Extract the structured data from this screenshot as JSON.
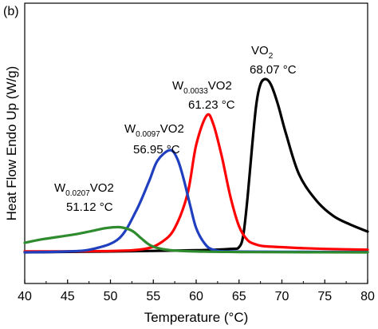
{
  "panel_label": "(b)",
  "chart_data": {
    "type": "line",
    "title": "",
    "xlabel": "Temperature (°C)",
    "ylabel": "Heat Flow Endo Up (W/g)",
    "xlim": [
      40,
      80
    ],
    "x_ticks": [
      "40",
      "45",
      "50",
      "55",
      "60",
      "65",
      "70",
      "75",
      "80"
    ],
    "y_ticks_shown": false,
    "grid": false,
    "legend": "none (series labelled by annotations)",
    "series": [
      {
        "name": "VO2",
        "color": "#000000",
        "x": [
          40,
          50,
          60,
          64,
          65,
          65.5,
          66,
          66.5,
          67,
          67.5,
          68.07,
          68.7,
          69.5,
          70.5,
          72,
          74,
          76,
          78,
          80
        ],
        "y": [
          0,
          0.005,
          0.012,
          0.02,
          0.03,
          0.1,
          0.32,
          0.6,
          0.85,
          0.97,
          1.0,
          0.97,
          0.86,
          0.68,
          0.45,
          0.3,
          0.21,
          0.16,
          0.12
        ]
      },
      {
        "name": "W0.0033VO2",
        "color": "#ff0000",
        "x": [
          40,
          50,
          54,
          56,
          57.5,
          59,
          60,
          61.23,
          62,
          63,
          64,
          65,
          66,
          67,
          68,
          70,
          72,
          75,
          80
        ],
        "y": [
          0.005,
          0.008,
          0.02,
          0.06,
          0.14,
          0.34,
          0.62,
          0.79,
          0.74,
          0.55,
          0.32,
          0.15,
          0.07,
          0.045,
          0.035,
          0.03,
          0.025,
          0.02,
          0.015
        ]
      },
      {
        "name": "W0.0097VO2",
        "color": "#1f3fbf",
        "x": [
          40,
          45,
          48,
          51,
          53,
          54.5,
          55.5,
          56.95,
          57.8,
          58.5,
          59.3,
          60,
          61,
          62,
          64,
          70,
          80
        ],
        "y": [
          0,
          0.005,
          0.02,
          0.08,
          0.24,
          0.41,
          0.53,
          0.59,
          0.54,
          0.43,
          0.27,
          0.14,
          0.05,
          0.015,
          0.005,
          0.003,
          0.002
        ]
      },
      {
        "name": "W0.0207VO2",
        "color": "#2e8b2e",
        "x": [
          40,
          42,
          44,
          46,
          48,
          49.5,
          51.12,
          52.5,
          53.5,
          54.5,
          55.5,
          57,
          60,
          65,
          70,
          80
        ],
        "y": [
          0.055,
          0.075,
          0.09,
          0.105,
          0.125,
          0.14,
          0.145,
          0.125,
          0.085,
          0.045,
          0.025,
          0.012,
          0.005,
          0.002,
          0.001,
          0
        ]
      }
    ],
    "annotations": [
      {
        "series": "VO2",
        "base": "VO",
        "sub": "",
        "end": "2",
        "value": "68.07 °C"
      },
      {
        "series": "W0.0033VO2",
        "base": "W",
        "sub": "0.0033",
        "end": "VO2",
        "value": "61.23 °C"
      },
      {
        "series": "W0.0097VO2",
        "base": "W",
        "sub": "0.0097",
        "end": "VO2",
        "value": "56.95 °C"
      },
      {
        "series": "W0.0207VO2",
        "base": "W",
        "sub": "0.0207",
        "end": "VO2",
        "value": "51.12 °C"
      }
    ]
  }
}
